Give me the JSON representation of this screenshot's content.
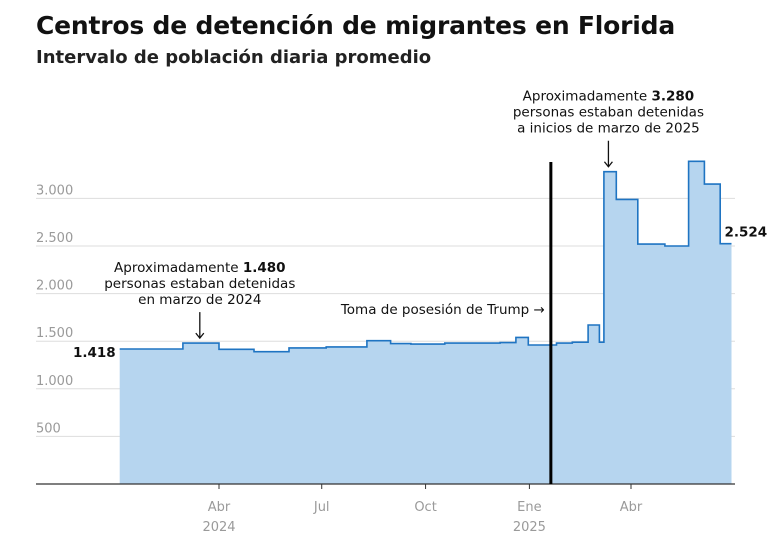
{
  "chart_data": {
    "type": "area",
    "title": "Centros de detención de migrantes en Florida",
    "subtitle": "Intervalo de población diaria promedio",
    "xlabel": "",
    "ylabel": "",
    "ylim": [
      0,
      3500
    ],
    "yticks": [
      500,
      1000,
      1500,
      2000,
      2500,
      3000
    ],
    "ytick_labels": [
      "500",
      "1.000",
      "1.500",
      "2.000",
      "2.500",
      "3.000"
    ],
    "xtick_labels": [
      {
        "date": "2024-04-01",
        "label": "Abr",
        "year": "2024"
      },
      {
        "date": "2024-07-01",
        "label": "Jul",
        "year": ""
      },
      {
        "date": "2024-10-01",
        "label": "Oct",
        "year": ""
      },
      {
        "date": "2025-01-01",
        "label": "Ene",
        "year": "2025"
      },
      {
        "date": "2025-04-01",
        "label": "Abr",
        "year": ""
      }
    ],
    "grid": true,
    "step": true,
    "series": [
      {
        "name": "",
        "points": [
          {
            "date": "2024-01-04",
            "value": 1418
          },
          {
            "date": "2024-02-29",
            "value": 1480
          },
          {
            "date": "2024-04-01",
            "value": 1415
          },
          {
            "date": "2024-05-02",
            "value": 1390
          },
          {
            "date": "2024-06-02",
            "value": 1430
          },
          {
            "date": "2024-07-05",
            "value": 1440
          },
          {
            "date": "2024-08-10",
            "value": 1505
          },
          {
            "date": "2024-08-31",
            "value": 1475
          },
          {
            "date": "2024-09-18",
            "value": 1470
          },
          {
            "date": "2024-10-18",
            "value": 1480
          },
          {
            "date": "2024-12-06",
            "value": 1485
          },
          {
            "date": "2024-12-20",
            "value": 1540
          },
          {
            "date": "2024-12-31",
            "value": 1460
          },
          {
            "date": "2025-01-25",
            "value": 1480
          },
          {
            "date": "2025-02-08",
            "value": 1490
          },
          {
            "date": "2025-02-22",
            "value": 1670
          },
          {
            "date": "2025-03-04",
            "value": 1490
          },
          {
            "date": "2025-03-08",
            "value": 3280
          },
          {
            "date": "2025-03-19",
            "value": 2990
          },
          {
            "date": "2025-04-07",
            "value": 2520
          },
          {
            "date": "2025-05-01",
            "value": 2500
          },
          {
            "date": "2025-05-22",
            "value": 3390
          },
          {
            "date": "2025-06-05",
            "value": 3150
          },
          {
            "date": "2025-06-19",
            "value": 2524
          }
        ],
        "end_date": "2025-06-29"
      }
    ],
    "start_label": "1.418",
    "end_label": "2.524",
    "event_line": {
      "date": "2025-01-20",
      "label": "Toma de posesión de Trump →"
    },
    "annotations": [
      {
        "date": "2024-03-15",
        "value": 1480,
        "position": "above",
        "lines": [
          [
            "Aproximadamente ",
            "1.480"
          ],
          [
            "personas estaban detenidas",
            ""
          ],
          [
            "en marzo de 2024",
            ""
          ]
        ]
      },
      {
        "date": "2025-03-12",
        "value": 3280,
        "position": "above",
        "lines": [
          [
            "Aproximadamente ",
            "3.280"
          ],
          [
            "personas estaban detenidas",
            ""
          ],
          [
            "a inicios de marzo de 2025",
            ""
          ]
        ]
      }
    ],
    "colors": {
      "fill": "#b6d5ef",
      "line": "#1f74c2",
      "grid": "#dddddd",
      "event": "#000000",
      "axis": "#333333"
    }
  }
}
